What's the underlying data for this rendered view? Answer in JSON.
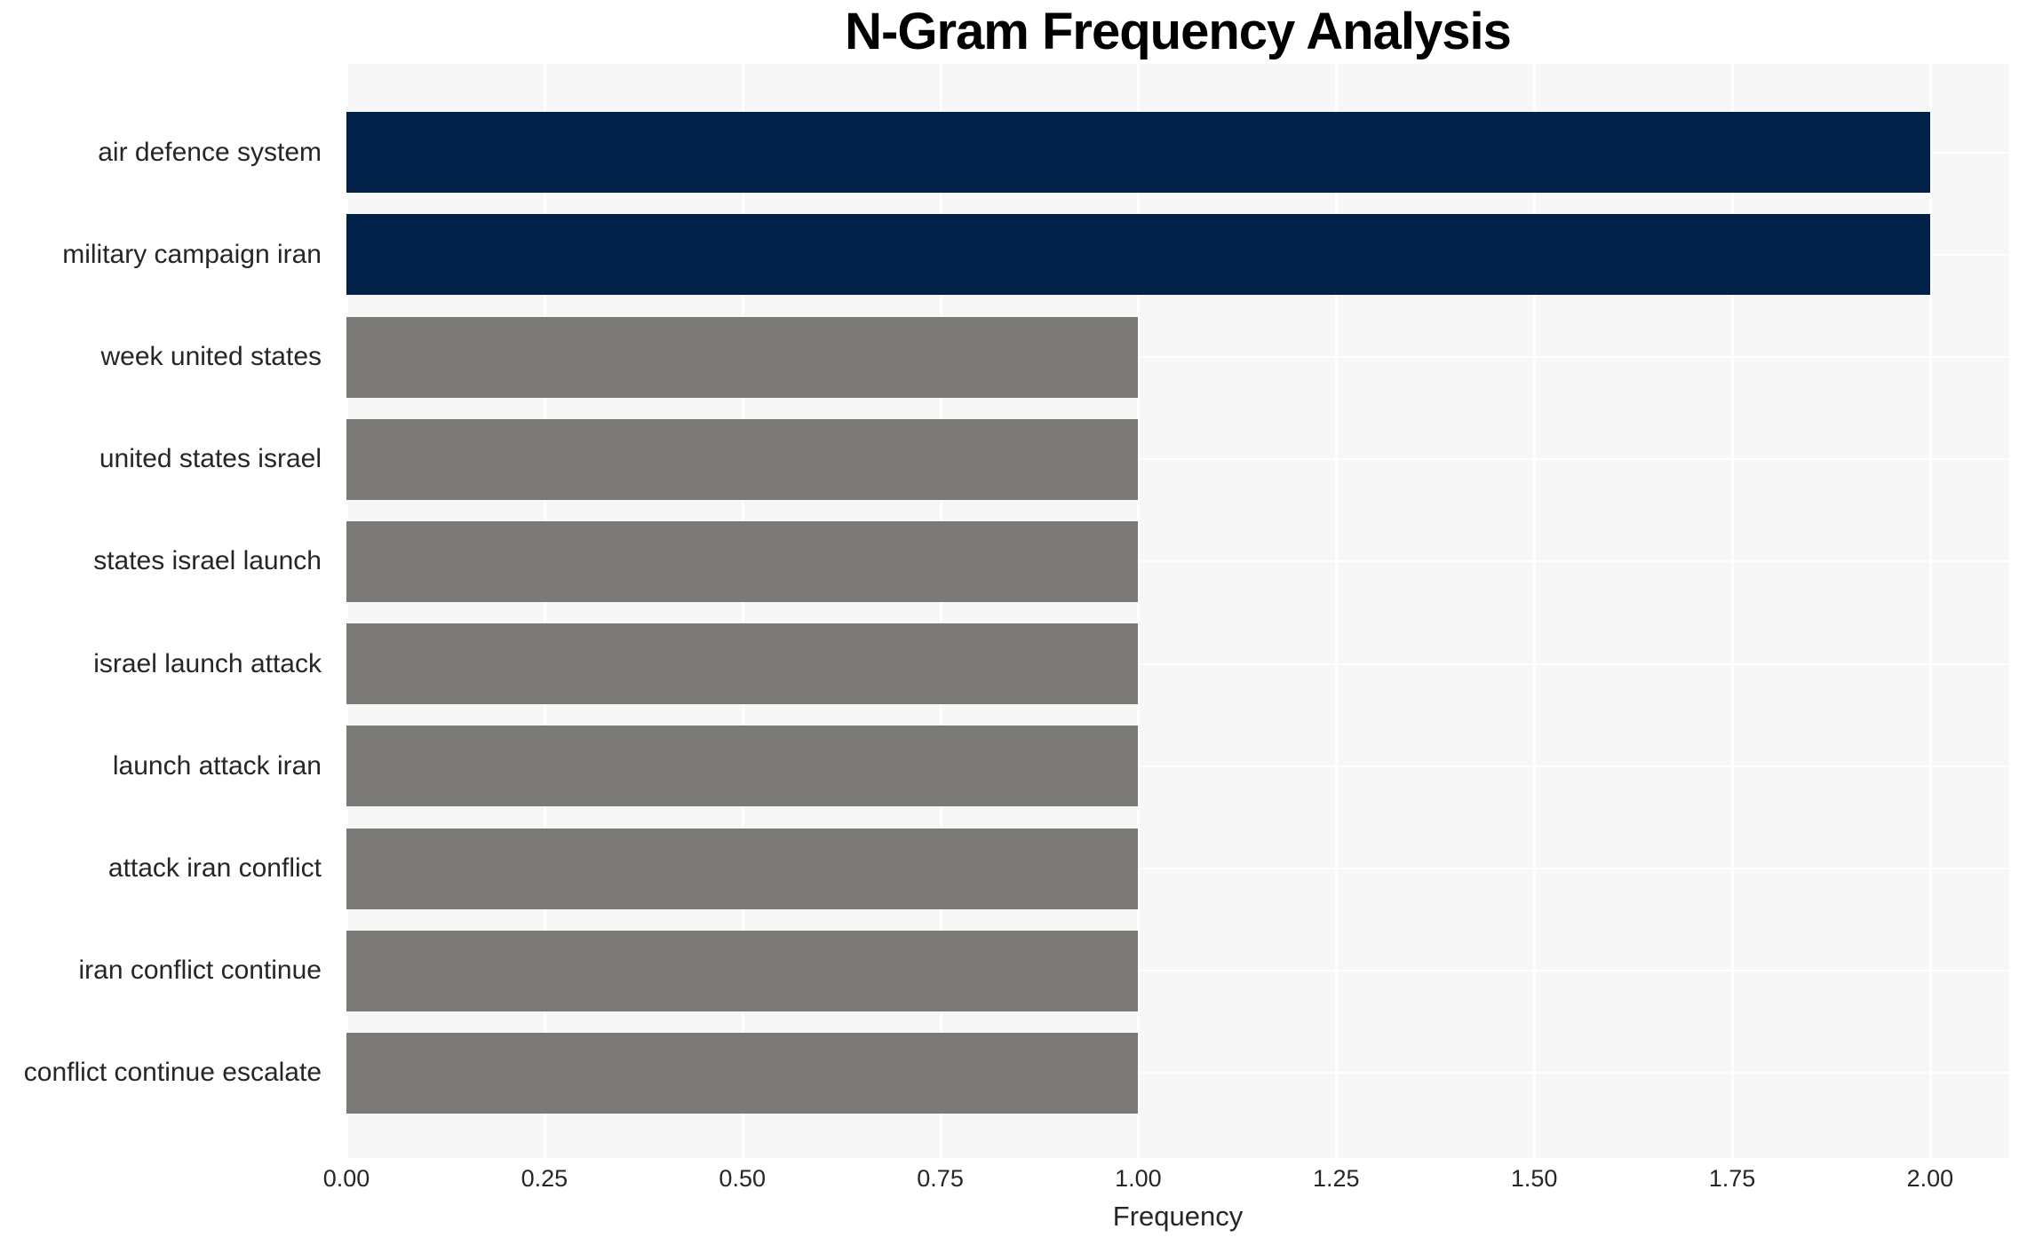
{
  "chart_data": {
    "type": "bar",
    "orientation": "horizontal",
    "title": "N-Gram Frequency Analysis",
    "xlabel": "Frequency",
    "ylabel": "",
    "categories": [
      "air defence system",
      "military campaign iran",
      "week united states",
      "united states israel",
      "states israel launch",
      "israel launch attack",
      "launch attack iran",
      "attack iran conflict",
      "iran conflict continue",
      "conflict continue escalate"
    ],
    "values": [
      2.0,
      2.0,
      1.0,
      1.0,
      1.0,
      1.0,
      1.0,
      1.0,
      1.0,
      1.0
    ],
    "bar_colors": [
      "#012148",
      "#012148",
      "#7b7a76",
      "#7b7a76",
      "#7b7a76",
      "#7b7a76",
      "#7b7a76",
      "#7b7a76",
      "#7b7a76",
      "#7b7a76"
    ],
    "x_tick_labels": [
      "0.00",
      "0.25",
      "0.50",
      "0.75",
      "1.00",
      "1.25",
      "1.50",
      "1.75",
      "2.00"
    ],
    "xlim": [
      0,
      2.1
    ],
    "grid": true,
    "legend": false,
    "colors": {
      "highlight": "#012148",
      "default_bar": "#7b7a76",
      "plot_background": "#f7f7f7",
      "gridline": "#ffffff",
      "tick_text": "#262626",
      "title_text": "#000000"
    }
  }
}
